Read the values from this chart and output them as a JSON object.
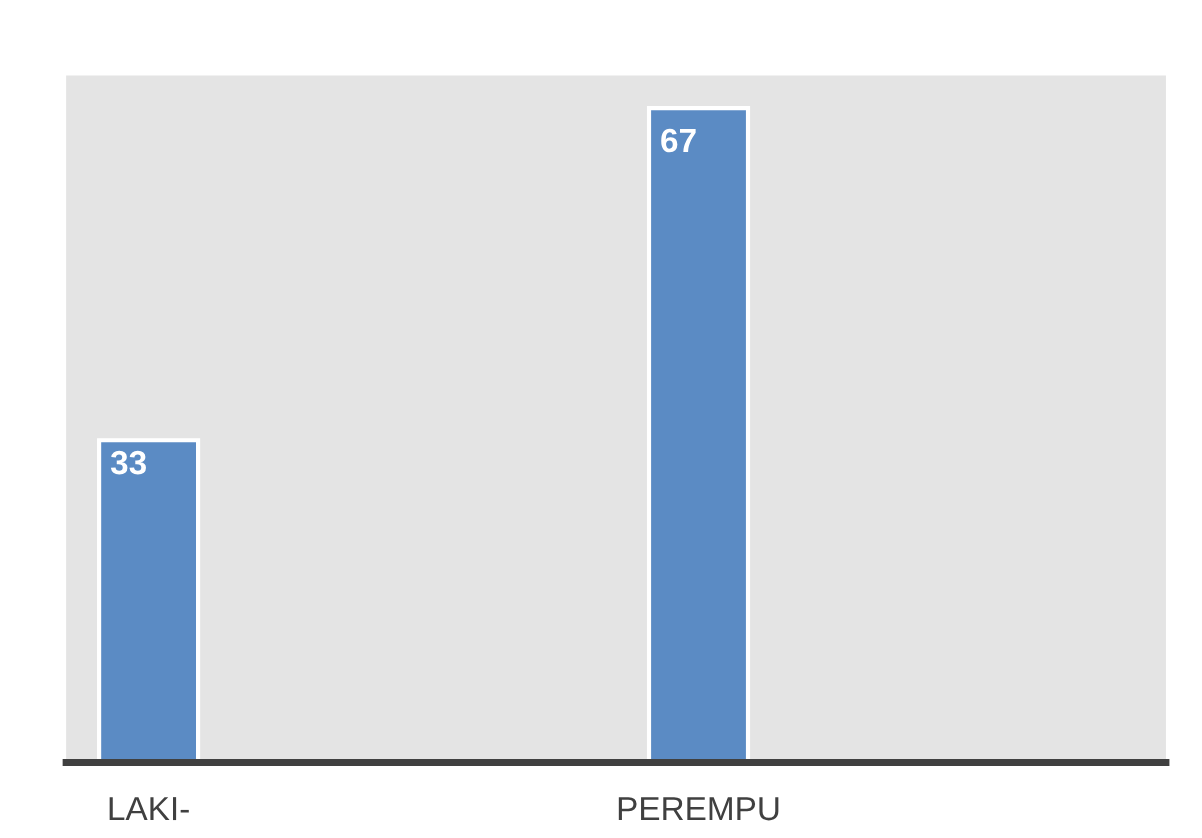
{
  "chart_data": {
    "type": "bar",
    "categories": [
      "LAKI-",
      "PEREMPU"
    ],
    "values": [
      33,
      67
    ],
    "color": "#5b8bc4",
    "data_labels": true,
    "grid": false,
    "legend": false
  }
}
